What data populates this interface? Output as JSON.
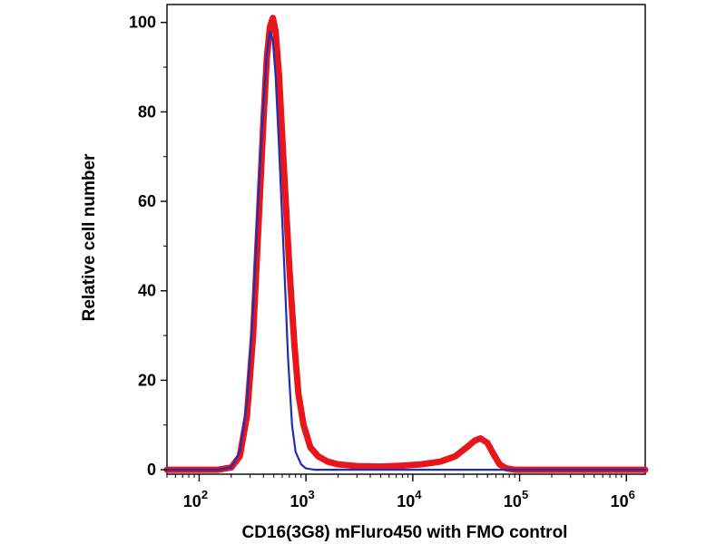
{
  "chart_data": {
    "type": "line",
    "xlabel": "CD16(3G8) mFluro450 with FMO control",
    "ylabel": "Relative cell number",
    "x_scale": "log",
    "xlim": [
      50,
      1500000
    ],
    "ylim": [
      -1,
      104
    ],
    "x_ticks": [
      {
        "base": "10",
        "exp": "2",
        "value": 100
      },
      {
        "base": "10",
        "exp": "3",
        "value": 1000
      },
      {
        "base": "10",
        "exp": "4",
        "value": 10000
      },
      {
        "base": "10",
        "exp": "5",
        "value": 100000
      },
      {
        "base": "10",
        "exp": "6",
        "value": 1000000
      }
    ],
    "y_ticks": [
      0,
      20,
      40,
      60,
      80,
      100
    ],
    "grid": false,
    "series": [
      {
        "color": "#e8151b",
        "points": [
          [
            50,
            0
          ],
          [
            150,
            0
          ],
          [
            200,
            0.5
          ],
          [
            240,
            3
          ],
          [
            280,
            12
          ],
          [
            320,
            30
          ],
          [
            360,
            55
          ],
          [
            400,
            78
          ],
          [
            430,
            92
          ],
          [
            460,
            99
          ],
          [
            490,
            101
          ],
          [
            520,
            98
          ],
          [
            560,
            88
          ],
          [
            620,
            68
          ],
          [
            700,
            45
          ],
          [
            780,
            28
          ],
          [
            850,
            17
          ],
          [
            950,
            10
          ],
          [
            1100,
            5
          ],
          [
            1300,
            3
          ],
          [
            1600,
            1.8
          ],
          [
            2000,
            1.2
          ],
          [
            3000,
            0.8
          ],
          [
            5000,
            0.7
          ],
          [
            8000,
            0.9
          ],
          [
            12000,
            1.2
          ],
          [
            18000,
            1.8
          ],
          [
            25000,
            3
          ],
          [
            32000,
            5
          ],
          [
            38000,
            6.5
          ],
          [
            43000,
            7
          ],
          [
            50000,
            6
          ],
          [
            57000,
            3.5
          ],
          [
            65000,
            1.2
          ],
          [
            75000,
            0.3
          ],
          [
            90000,
            0
          ],
          [
            1500000,
            0
          ]
        ]
      },
      {
        "color": "#1f2fb5",
        "points": [
          [
            50,
            0
          ],
          [
            150,
            0
          ],
          [
            200,
            0.5
          ],
          [
            240,
            4
          ],
          [
            280,
            15
          ],
          [
            320,
            36
          ],
          [
            360,
            62
          ],
          [
            400,
            82
          ],
          [
            430,
            93
          ],
          [
            460,
            98
          ],
          [
            490,
            96
          ],
          [
            520,
            88
          ],
          [
            560,
            72
          ],
          [
            620,
            48
          ],
          [
            680,
            25
          ],
          [
            740,
            10
          ],
          [
            800,
            4
          ],
          [
            900,
            1.2
          ],
          [
            1000,
            0.3
          ],
          [
            1200,
            0
          ],
          [
            1500000,
            0
          ]
        ]
      }
    ]
  }
}
